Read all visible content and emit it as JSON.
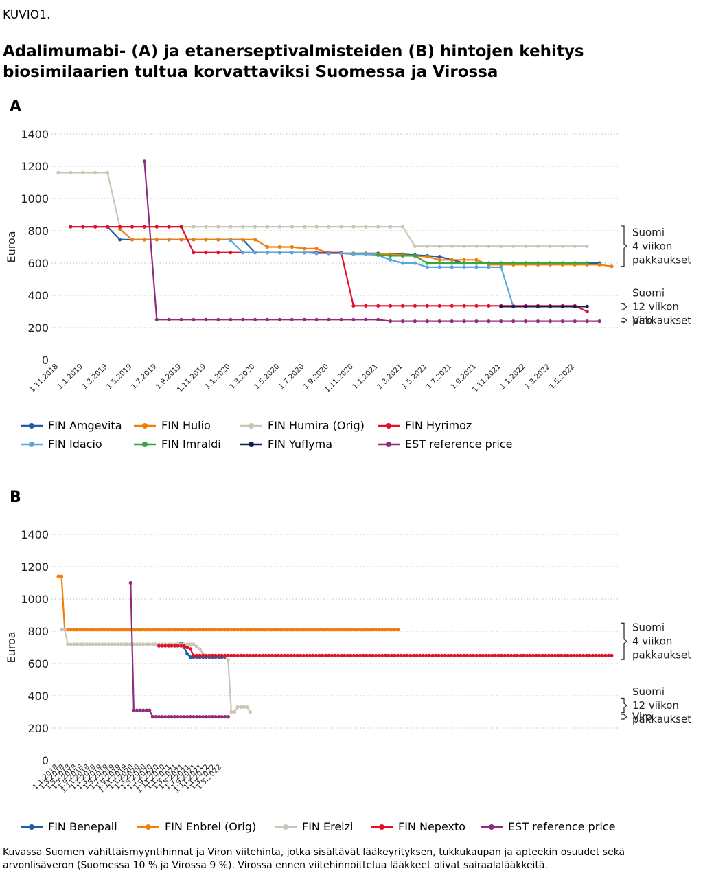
{
  "figure_label": "KUVIO1.",
  "title": "Adalimumabi- (A) ja etanerseptivalmisteiden (B) hintojen kehitys biosimilaarien tultua korvattaviksi Suomessa ja Virossa",
  "footnote": "Kuvassa Suomen vähittäismyyntihinnat ja Viron viitehinta, jotka sisältävät lääkeyrityksen, tukkukaupan ja apteekin osuudet sekä arvonlisäveron (Suomessa 10 % ja Virossa 9 %). Virossa ennen viitehinnoittelua lääkkeet olivat sairaalalääkkeitä.",
  "chart_data": [
    {
      "panel": "A",
      "type": "line",
      "ylabel": "Euroa",
      "ylim": [
        0,
        1400
      ],
      "yticks": [
        0,
        200,
        400,
        600,
        800,
        1000,
        1200,
        1400
      ],
      "grid": "horizontal dotted",
      "x_step": "1 month",
      "x_start": "1.11.2018",
      "xtick_labels": [
        "1.11.2018",
        "1.1.2019",
        "1.3.2019",
        "1.5.2019",
        "1.7.2019",
        "1.9.2019",
        "1.11.2019",
        "1.1.2020",
        "1.3.2020",
        "1.5.2020",
        "1.7.2020",
        "1.9.2020",
        "1.11.2020",
        "1.1.2021",
        "1.3.2021",
        "1.5.2021",
        "1.7.2021",
        "1.9.2021",
        "1.11.2021",
        "1.1.2022",
        "1.3.2022",
        "1.5.2022"
      ],
      "annotations": [
        {
          "lines": [
            "Suomi",
            "4 viikon",
            "pakkaukset"
          ],
          "range": [
            580,
            830
          ]
        },
        {
          "lines": [
            "Suomi",
            "12 viikon",
            "pakkaukset"
          ],
          "range": [
            310,
            350
          ]
        },
        {
          "lines": [
            "Viro"
          ],
          "range": [
            235,
            255
          ]
        }
      ],
      "series": [
        {
          "name": "FIN Amgevita",
          "color": "#1f5fa3",
          "start": "1.1.2019",
          "values": [
            825,
            825,
            825,
            745,
            745,
            745,
            745,
            745,
            745,
            745,
            745,
            745,
            745,
            745,
            665,
            665,
            665,
            665,
            665,
            665,
            665,
            660,
            660,
            660,
            660,
            655,
            655,
            650,
            645,
            640,
            620,
            600,
            600,
            600,
            600,
            600,
            600,
            600,
            600,
            600,
            600,
            600,
            600
          ]
        },
        {
          "name": "FIN Hulio",
          "color": "#f07f09",
          "start": "1.4.2019",
          "values": [
            810,
            745,
            745,
            745,
            745,
            745,
            745,
            745,
            745,
            745,
            745,
            745,
            700,
            700,
            700,
            690,
            690,
            660,
            660,
            660,
            660,
            655,
            655,
            650,
            645,
            640,
            620,
            620,
            620,
            620,
            590,
            590,
            590,
            590,
            590,
            590,
            590,
            590,
            590,
            590,
            580
          ]
        },
        {
          "name": "FIN Humira (Orig)",
          "color": "#c9c6b6",
          "start": "1.11.2018",
          "values": [
            1160,
            1160,
            1160,
            1160,
            1160,
            825,
            825,
            825,
            825,
            825,
            825,
            825,
            825,
            825,
            825,
            825,
            825,
            825,
            825,
            825,
            825,
            825,
            825,
            825,
            825,
            825,
            825,
            825,
            825,
            705,
            705,
            705,
            705,
            705,
            705,
            705,
            705,
            705,
            705,
            705,
            705,
            705,
            705,
            705
          ]
        },
        {
          "name": "FIN Hyrimoz",
          "color": "#e3102b",
          "start": "1.12.2018",
          "values": [
            825,
            825,
            825,
            825,
            825,
            825,
            825,
            825,
            825,
            825,
            665,
            665,
            665,
            665,
            665,
            665,
            665,
            665,
            665,
            665,
            665,
            665,
            665,
            335,
            335,
            335,
            335,
            335,
            335,
            335,
            335,
            335,
            335,
            335,
            335,
            335,
            335,
            335,
            335,
            335,
            335,
            335,
            300
          ]
        },
        {
          "name": "FIN Idacio",
          "color": "#55a9e0",
          "start": "1.1.2020",
          "values": [
            740,
            665,
            665,
            665,
            665,
            665,
            665,
            660,
            660,
            660,
            655,
            655,
            650,
            620,
            600,
            600,
            575,
            575,
            575,
            575,
            575,
            575,
            575,
            330,
            330,
            330,
            330,
            330,
            330
          ]
        },
        {
          "name": "FIN Imraldi",
          "color": "#3aa63a",
          "start": "1.1.2021",
          "values": [
            650,
            645,
            645,
            645,
            600,
            600,
            600,
            600,
            600,
            600,
            600,
            600,
            600,
            600,
            600,
            600,
            600,
            600
          ]
        },
        {
          "name": "FIN Yuflyma",
          "color": "#141c5c",
          "start": "1.11.2021",
          "values": [
            330,
            330,
            330,
            330,
            330,
            330,
            330,
            330
          ]
        },
        {
          "name": "EST reference price",
          "color": "#8e2d7e",
          "start": "1.6.2019",
          "values": [
            1230,
            250,
            250,
            250,
            250,
            250,
            250,
            250,
            250,
            250,
            250,
            250,
            250,
            250,
            250,
            250,
            250,
            250,
            250,
            250,
            240,
            240,
            240,
            240,
            240,
            240,
            240,
            240,
            240,
            240,
            240,
            240,
            240,
            240,
            240,
            240,
            240,
            240
          ]
        }
      ]
    },
    {
      "panel": "B",
      "type": "line",
      "ylabel": "Euroa",
      "ylim": [
        0,
        1400
      ],
      "yticks": [
        0,
        200,
        400,
        600,
        800,
        1000,
        1200,
        1400
      ],
      "grid": "horizontal dotted",
      "x_step": "1 month",
      "x_start": "1.1.2018",
      "xtick_labels": [
        "1.1.2018",
        "1.3.2018",
        "1.5.2018",
        "1.7.2018",
        "1.9.2018",
        "1.11.2018",
        "1.1.2019",
        "1.3.2019",
        "1.5.2019",
        "1.7.2019",
        "1.9.2019",
        "1.11.2019",
        "1.1.2020",
        "1.3.2020",
        "1.5.2020",
        "1.7.2020",
        "1.9.2020",
        "1.11.2020",
        "1.1.2021",
        "1.3.2021",
        "1.5.2021",
        "1.7.2021",
        "1.9.2021",
        "1.11.2021",
        "1.1.2022",
        "1.3.2022",
        "1.5.2022"
      ],
      "annotations": [
        {
          "lines": [
            "Suomi",
            "4 viikon",
            "pakkaukset"
          ],
          "range": [
            625,
            850
          ]
        },
        {
          "lines": [
            "Suomi",
            "12 viikon",
            "pakkaukset"
          ],
          "range": [
            295,
            385
          ]
        },
        {
          "lines": [
            "Viro"
          ],
          "range": [
            255,
            285
          ]
        }
      ],
      "series": [
        {
          "name": "FIN Benepali",
          "color": "#1f5fa3",
          "start": "1.3.2021",
          "values": [
            720,
            725,
            700,
            660,
            640,
            640,
            640,
            640,
            640,
            640,
            640,
            640,
            640,
            640,
            640,
            640
          ]
        },
        {
          "name": "FIN Enbrel (Orig)",
          "color": "#f07f09",
          "start": "1.1.2018",
          "values": [
            1140,
            1140,
            810,
            810,
            810,
            810,
            810,
            810,
            810,
            810,
            810,
            810,
            810,
            810,
            810,
            810,
            810,
            810,
            810,
            810,
            810,
            810,
            810,
            810,
            810,
            810,
            810,
            810,
            810,
            810,
            810,
            810,
            810,
            810,
            810,
            810,
            810,
            810,
            810,
            810,
            810,
            810,
            810,
            810,
            810,
            810,
            810,
            810,
            810,
            810,
            810,
            810,
            810,
            810,
            810,
            810,
            810,
            810,
            810,
            810,
            810,
            810,
            810,
            810,
            810,
            810,
            810,
            810,
            810,
            810,
            810,
            810,
            810,
            810,
            810,
            810,
            810,
            810,
            810,
            810,
            810,
            810,
            810,
            810,
            810,
            810,
            810,
            810,
            810,
            810,
            810,
            810,
            810,
            810,
            810,
            810,
            810,
            810,
            810,
            810,
            810,
            810,
            810,
            810,
            810,
            810,
            810,
            810,
            810
          ]
        },
        {
          "name": "FIN Erelzi",
          "color": "#c9c6b6",
          "start": "1.2.2018",
          "values": [
            810,
            810,
            720,
            720,
            720,
            720,
            720,
            720,
            720,
            720,
            720,
            720,
            720,
            720,
            720,
            720,
            720,
            720,
            720,
            720,
            720,
            720,
            720,
            720,
            720,
            720,
            720,
            720,
            720,
            720,
            720,
            720,
            720,
            720,
            720,
            720,
            720,
            720,
            720,
            720,
            720,
            720,
            720,
            705,
            690,
            660,
            650,
            650,
            650,
            650,
            650,
            650,
            650,
            620,
            300,
            300,
            330,
            330,
            330,
            330,
            300
          ]
        },
        {
          "name": "FIN Nepexto",
          "color": "#e3102b",
          "start": "1.9.2020",
          "values": [
            710,
            710,
            710,
            710,
            710,
            710,
            710,
            710,
            710,
            700,
            690,
            650,
            650,
            650,
            650,
            650,
            650,
            650,
            650,
            650,
            650,
            650,
            650,
            650,
            650,
            650,
            650,
            650,
            650,
            650,
            650,
            650,
            650,
            650,
            650,
            650,
            650,
            650,
            650,
            650,
            650,
            650,
            650,
            650,
            650,
            650,
            650,
            650,
            650,
            650,
            650,
            650,
            650,
            650,
            650,
            650,
            650,
            650,
            650,
            650,
            650,
            650,
            650,
            650,
            650,
            650,
            650,
            650,
            650,
            650,
            650,
            650,
            650,
            650,
            650,
            650,
            650,
            650,
            650,
            650,
            650,
            650,
            650,
            650,
            650,
            650,
            650,
            650,
            650,
            650,
            650,
            650,
            650,
            650,
            650,
            650,
            650,
            650,
            650,
            650,
            650,
            650,
            650,
            650,
            650,
            650,
            650,
            650,
            650,
            650,
            650,
            650,
            650,
            650,
            650,
            650,
            650,
            650,
            650,
            650,
            650,
            650,
            650,
            650,
            650,
            650,
            650,
            650,
            650,
            650,
            650,
            650,
            650,
            650,
            650,
            650,
            650,
            650,
            650,
            650,
            650,
            650,
            650,
            650,
            650
          ]
        },
        {
          "name": "EST reference price",
          "color": "#8e2d7e",
          "start": "1.12.2019",
          "values": [
            1100,
            310,
            310,
            310,
            310,
            310,
            310,
            270,
            270,
            270,
            270,
            270,
            270,
            270,
            270,
            270,
            270,
            270,
            270,
            270,
            270,
            270,
            270,
            270,
            270,
            270,
            270,
            270,
            270,
            270,
            270,
            270
          ]
        }
      ]
    }
  ]
}
